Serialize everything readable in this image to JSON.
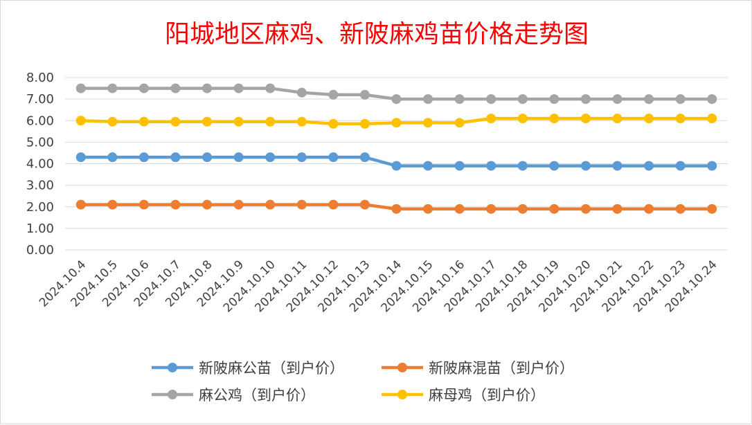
{
  "chart_data": {
    "type": "line",
    "title": "阳城地区麻鸡、新陂麻鸡苗价格走势图",
    "xlabel": "",
    "ylabel": "",
    "ylim": [
      0,
      8
    ],
    "y_ticks": [
      "0.00",
      "1.00",
      "2.00",
      "3.00",
      "4.00",
      "5.00",
      "6.00",
      "7.00",
      "8.00"
    ],
    "grid": true,
    "legend_position": "bottom",
    "categories": [
      "2024.10.4",
      "2024.10.5",
      "2024.10.6",
      "2024.10.7",
      "2024.10.8",
      "2024.10.9",
      "2024.10.10",
      "2024.10.11",
      "2024.10.12",
      "2024.10.13",
      "2024.10.14",
      "2024.10.15",
      "2024.10.16",
      "2024.10.17",
      "2024.10.18",
      "2024.10.19",
      "2024.10.20",
      "2024.10.21",
      "2024.10.22",
      "2024.10.23",
      "2024.10.24"
    ],
    "series": [
      {
        "name": "新陂麻公苗（到户价）",
        "color": "#5b9bd5",
        "values": [
          4.3,
          4.3,
          4.3,
          4.3,
          4.3,
          4.3,
          4.3,
          4.3,
          4.3,
          4.3,
          3.9,
          3.9,
          3.9,
          3.9,
          3.9,
          3.9,
          3.9,
          3.9,
          3.9,
          3.9,
          3.9
        ]
      },
      {
        "name": "新陂麻混苗（到户价）",
        "color": "#ed7d31",
        "values": [
          2.1,
          2.1,
          2.1,
          2.1,
          2.1,
          2.1,
          2.1,
          2.1,
          2.1,
          2.1,
          1.9,
          1.9,
          1.9,
          1.9,
          1.9,
          1.9,
          1.9,
          1.9,
          1.9,
          1.9,
          1.9
        ]
      },
      {
        "name": "麻公鸡（到户价）",
        "color": "#a5a5a5",
        "values": [
          7.5,
          7.5,
          7.5,
          7.5,
          7.5,
          7.5,
          7.5,
          7.3,
          7.2,
          7.2,
          7.0,
          7.0,
          7.0,
          7.0,
          7.0,
          7.0,
          7.0,
          7.0,
          7.0,
          7.0,
          7.0
        ]
      },
      {
        "name": "麻母鸡（到户价）",
        "color": "#ffc000",
        "values": [
          6.0,
          5.95,
          5.95,
          5.95,
          5.95,
          5.95,
          5.95,
          5.95,
          5.85,
          5.85,
          5.9,
          5.9,
          5.9,
          6.1,
          6.1,
          6.1,
          6.1,
          6.1,
          6.1,
          6.1,
          6.1
        ]
      }
    ]
  }
}
